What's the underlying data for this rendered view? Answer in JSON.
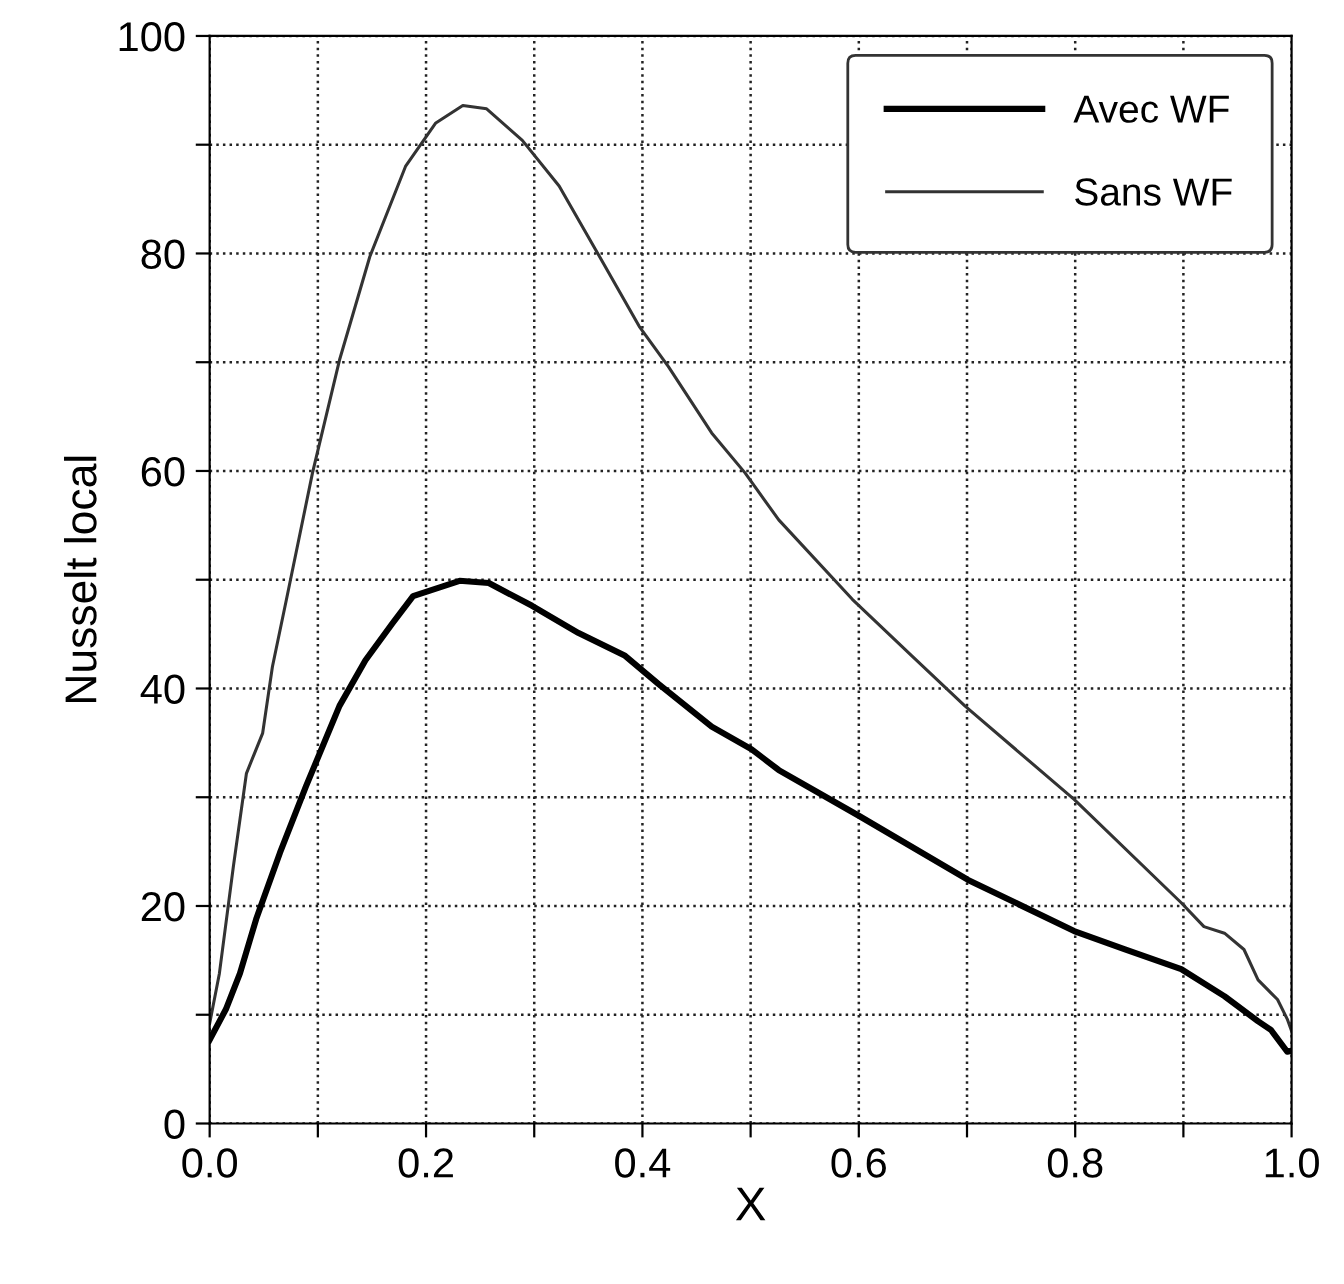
{
  "chart_data": {
    "type": "line",
    "xlabel": "X",
    "ylabel": "Nusselt local",
    "xlim": [
      0,
      1
    ],
    "ylim": [
      0,
      100
    ],
    "xticks": [
      {
        "value": 0,
        "label": "0.0"
      },
      {
        "value": 0.1,
        "label": null
      },
      {
        "value": 0.2,
        "label": "0.2"
      },
      {
        "value": 0.3,
        "label": null
      },
      {
        "value": 0.4,
        "label": "0.4"
      },
      {
        "value": 0.5,
        "label": null
      },
      {
        "value": 0.6,
        "label": "0.6"
      },
      {
        "value": 0.7,
        "label": null
      },
      {
        "value": 0.8,
        "label": "0.8"
      },
      {
        "value": 0.9,
        "label": null
      },
      {
        "value": 1,
        "label": "1.0"
      }
    ],
    "yticks": [
      0,
      {
        "value": 10,
        "label": null
      },
      20,
      {
        "value": 30,
        "label": null
      },
      40,
      {
        "value": 50,
        "label": null
      },
      60,
      {
        "value": 70,
        "label": null
      },
      80,
      {
        "value": 90,
        "label": null
      },
      100
    ],
    "grid": true,
    "legend": "top right",
    "marker": "none",
    "series": [
      {
        "name": "Avec WF",
        "color": "#000000",
        "line_style": "solid",
        "x": [
          0,
          0.015,
          0.028,
          0.043,
          0.065,
          0.089,
          0.12,
          0.144,
          0.169,
          0.188,
          0.231,
          0.258,
          0.298,
          0.341,
          0.384,
          0.415,
          0.464,
          0.501,
          0.526,
          0.6,
          0.701,
          0.799,
          0.846,
          0.898,
          0.938,
          0.969,
          0.981,
          0.996,
          1.0
        ],
        "values": [
          7.7,
          10.5,
          13.8,
          18.8,
          24.9,
          31.0,
          38.4,
          42.6,
          46.0,
          48.5,
          49.9,
          49.7,
          47.6,
          45.1,
          43.0,
          40.4,
          36.5,
          34.4,
          32.5,
          28.3,
          22.4,
          17.7,
          16.0,
          14.2,
          11.7,
          9.4,
          8.6,
          6.6,
          6.7
        ]
      },
      {
        "name": "Sans WF",
        "color": "#333333",
        "line_style": "solid",
        "x": [
          0,
          0.009,
          0.022,
          0.034,
          0.049,
          0.058,
          0.071,
          0.095,
          0.12,
          0.148,
          0.181,
          0.209,
          0.234,
          0.256,
          0.289,
          0.323,
          0.357,
          0.397,
          0.424,
          0.464,
          0.495,
          0.526,
          0.594,
          0.649,
          0.698,
          0.799,
          0.898,
          0.919,
          0.938,
          0.956,
          0.969,
          0.987,
          0.996,
          1.0
        ],
        "values": [
          9.2,
          13.8,
          23.7,
          32.2,
          35.9,
          42.0,
          48.2,
          59.8,
          70.2,
          79.7,
          88.0,
          92.0,
          93.6,
          93.3,
          90.4,
          86.2,
          80.3,
          73.3,
          69.6,
          63.5,
          59.8,
          55.5,
          48.2,
          43.0,
          38.4,
          29.8,
          20.3,
          18.1,
          17.5,
          16.0,
          13.2,
          11.4,
          9.6,
          8.5
        ]
      }
    ]
  }
}
